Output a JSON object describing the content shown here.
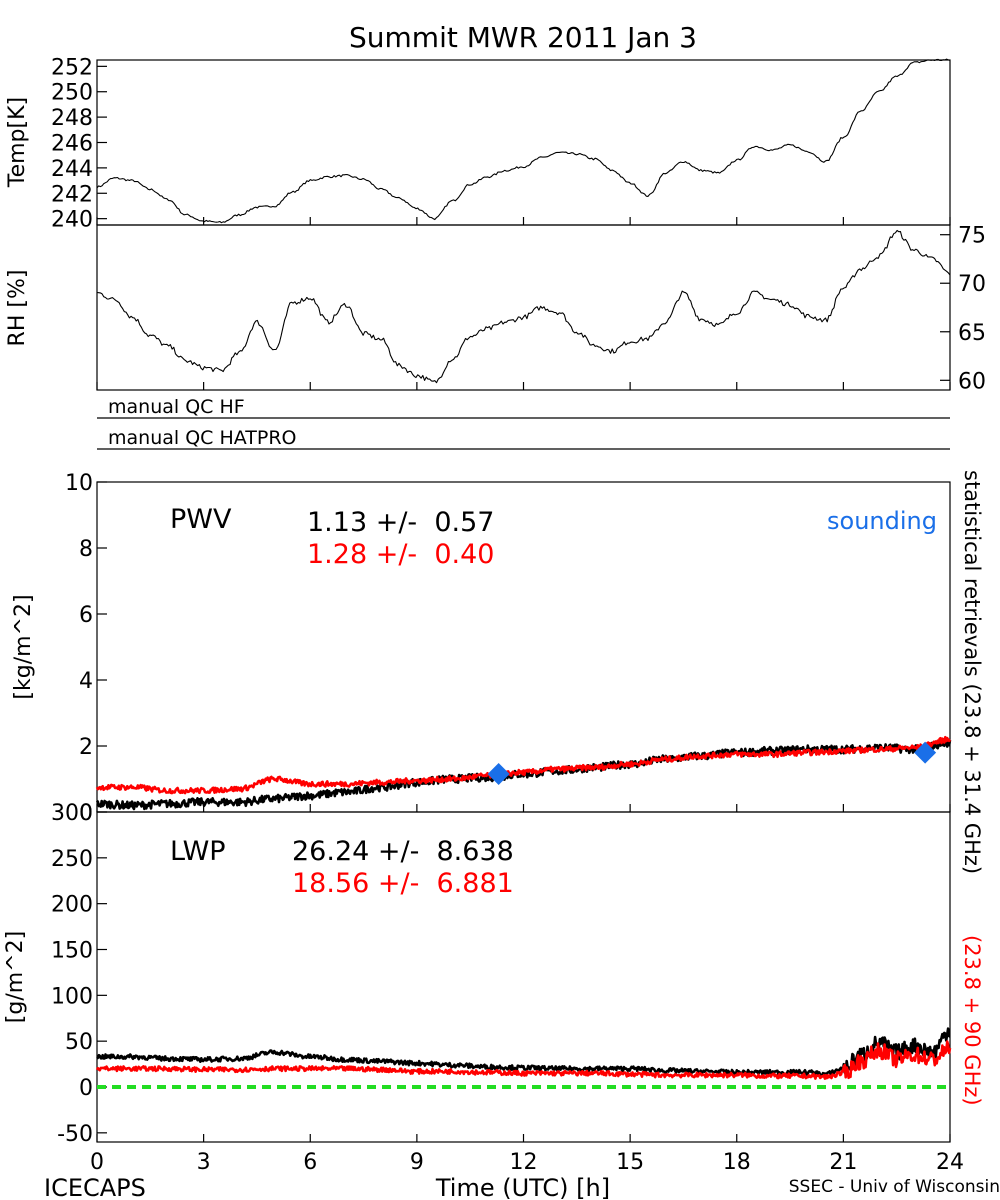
{
  "title": "Summit MWR 2011 Jan  3",
  "colors": {
    "black": "#000000",
    "red": "#ff0000",
    "sounding": "#1a6fe8",
    "zero_line": "#22dd22"
  },
  "qc": {
    "hf": "manual QC HF",
    "hatpro": "manual QC HATPRO"
  },
  "footer": {
    "left": "ICECAPS",
    "center": "Time (UTC) [h]",
    "right": "SSEC - Univ of Wisconsin"
  },
  "right_labels": {
    "black": "statistical retrievals (23.8 + 31.4 GHz)",
    "red": "(23.8 + 90 GHz)"
  },
  "pwv": {
    "label": "PWV",
    "black_stat": "1.13 +/-  0.57",
    "red_stat": "1.28 +/-  0.40",
    "sounding_label": "sounding"
  },
  "lwp": {
    "label": "LWP",
    "black_stat": "26.24 +/-  8.638",
    "red_stat": "18.56 +/-  6.881"
  },
  "chart_data": [
    {
      "type": "line",
      "ylabel": "Temp[K]",
      "xlim": [
        0,
        24
      ],
      "ylim": [
        239.5,
        252.5
      ],
      "yticks": [
        240,
        242,
        244,
        246,
        248,
        250,
        252
      ],
      "series": [
        {
          "color": "#000000",
          "x": [
            0,
            0.5,
            1,
            1.5,
            2,
            2.5,
            3,
            3.5,
            4,
            4.5,
            5,
            5.5,
            6,
            6.5,
            7,
            7.5,
            8,
            8.5,
            9,
            9.5,
            10,
            10.5,
            11,
            11.5,
            12,
            12.5,
            13,
            13.5,
            14,
            14.5,
            15,
            15.5,
            16,
            16.5,
            17,
            17.5,
            18,
            18.5,
            19,
            19.5,
            20,
            20.5,
            21,
            21.5,
            22,
            22.5,
            23,
            23.5,
            24
          ],
          "y": [
            242.5,
            243.2,
            243.0,
            242.3,
            241.5,
            240.3,
            239.8,
            239.7,
            240.3,
            240.9,
            241.0,
            242.1,
            243.0,
            243.3,
            243.4,
            243.1,
            242.3,
            241.6,
            240.8,
            240.0,
            241.4,
            242.7,
            243.3,
            243.8,
            244.1,
            244.8,
            245.2,
            245.1,
            244.7,
            243.8,
            242.8,
            241.8,
            243.6,
            244.5,
            243.8,
            243.6,
            244.6,
            245.7,
            245.4,
            245.8,
            245.3,
            244.5,
            246.4,
            248.5,
            250.0,
            251.2,
            252.3,
            252.5,
            252.5
          ]
        }
      ]
    },
    {
      "type": "line",
      "ylabel": "RH [%]",
      "xlim": [
        0,
        24
      ],
      "ylim": [
        59,
        76
      ],
      "yticks": [
        60,
        65,
        70,
        75
      ],
      "series": [
        {
          "color": "#000000",
          "x": [
            0,
            0.5,
            1,
            1.5,
            2,
            2.5,
            3,
            3.5,
            4,
            4.5,
            5,
            5.5,
            6,
            6.5,
            7,
            7.5,
            8,
            8.5,
            9,
            9.5,
            10,
            10.5,
            11,
            11.5,
            12,
            12.5,
            13,
            13.5,
            14,
            14.5,
            15,
            15.5,
            16,
            16.5,
            17,
            17.5,
            18,
            18.5,
            19,
            19.5,
            20,
            20.5,
            21,
            21.5,
            22,
            22.5,
            23,
            23.5,
            24
          ],
          "y": [
            69.0,
            68.3,
            66.5,
            64.6,
            63.5,
            62.0,
            61.3,
            61.0,
            62.8,
            66.0,
            63.1,
            68.0,
            68.5,
            66.0,
            67.8,
            64.8,
            64.2,
            61.5,
            60.5,
            59.8,
            62.2,
            64.5,
            65.3,
            66.0,
            66.5,
            67.5,
            67.0,
            65.0,
            63.6,
            63.0,
            64.0,
            64.3,
            66.0,
            69.0,
            66.3,
            65.7,
            67.0,
            69.0,
            68.3,
            67.8,
            66.6,
            66.2,
            69.5,
            71.5,
            72.8,
            75.3,
            73.4,
            72.5,
            71.0
          ]
        }
      ]
    },
    {
      "type": "line",
      "ylabel": "[kg/m^2]",
      "xlim": [
        0,
        24
      ],
      "ylim": [
        0,
        10
      ],
      "yticks": [
        0,
        2,
        4,
        6,
        8,
        10
      ],
      "series": [
        {
          "color": "#000000",
          "x": [
            0,
            1,
            2,
            3,
            4,
            5,
            6,
            7,
            8,
            9,
            10,
            11,
            12,
            13,
            14,
            15,
            16,
            17,
            18,
            19,
            20,
            21,
            22,
            23,
            24
          ],
          "y": [
            0.25,
            0.2,
            0.25,
            0.3,
            0.3,
            0.4,
            0.5,
            0.6,
            0.75,
            0.9,
            1.0,
            1.05,
            1.15,
            1.25,
            1.35,
            1.45,
            1.6,
            1.7,
            1.8,
            1.85,
            1.9,
            1.9,
            1.95,
            1.9,
            2.1
          ]
        },
        {
          "color": "#ff0000",
          "x": [
            0,
            1,
            2,
            3,
            4,
            5,
            6,
            7,
            8,
            9,
            10,
            11,
            12,
            13,
            14,
            15,
            16,
            17,
            18,
            19,
            20,
            21,
            22,
            23,
            24
          ],
          "y": [
            0.75,
            0.75,
            0.65,
            0.65,
            0.7,
            1.0,
            0.85,
            0.85,
            0.9,
            0.95,
            1.0,
            1.1,
            1.2,
            1.3,
            1.35,
            1.45,
            1.6,
            1.7,
            1.75,
            1.75,
            1.8,
            1.85,
            1.9,
            1.95,
            2.2
          ]
        },
        {
          "color": "#1a6fe8",
          "marker": "diamond",
          "x": [
            11.3,
            23.3
          ],
          "y": [
            1.15,
            1.8
          ]
        }
      ]
    },
    {
      "type": "line",
      "ylabel": "[g/m^2]",
      "xlabel": "Time (UTC) [h]",
      "xlim": [
        0,
        24
      ],
      "ylim": [
        -60,
        300
      ],
      "yticks": [
        -50,
        0,
        50,
        100,
        150,
        200,
        250,
        300
      ],
      "xticks": [
        0,
        3,
        6,
        9,
        12,
        15,
        18,
        21,
        24
      ],
      "series": [
        {
          "color": "#000000",
          "x": [
            0,
            1,
            2,
            3,
            4,
            5,
            6,
            7,
            8,
            9,
            10,
            11,
            12,
            13,
            14,
            15,
            16,
            17,
            18,
            19,
            20,
            20.5,
            21,
            21.5,
            22,
            22.5,
            23,
            23.5,
            24
          ],
          "y": [
            33,
            33,
            31,
            30,
            31,
            38,
            33,
            30,
            28,
            26,
            24,
            22,
            21,
            20,
            20,
            20,
            18,
            17,
            16,
            16,
            16,
            14,
            20,
            35,
            48,
            38,
            45,
            38,
            62
          ]
        },
        {
          "color": "#ff0000",
          "x": [
            0,
            1,
            2,
            3,
            4,
            5,
            6,
            7,
            8,
            9,
            10,
            11,
            12,
            13,
            14,
            15,
            16,
            17,
            18,
            19,
            20,
            20.5,
            21,
            21.5,
            22,
            22.5,
            23,
            23.5,
            24
          ],
          "y": [
            20,
            20,
            20,
            19,
            19,
            20,
            20,
            20,
            19,
            17,
            17,
            16,
            15,
            15,
            15,
            14,
            13,
            13,
            13,
            12,
            12,
            11,
            15,
            28,
            40,
            30,
            35,
            30,
            42
          ]
        },
        {
          "color": "#22dd22",
          "style": "dashed",
          "x": [
            0,
            24
          ],
          "y": [
            0,
            0
          ]
        }
      ]
    }
  ]
}
